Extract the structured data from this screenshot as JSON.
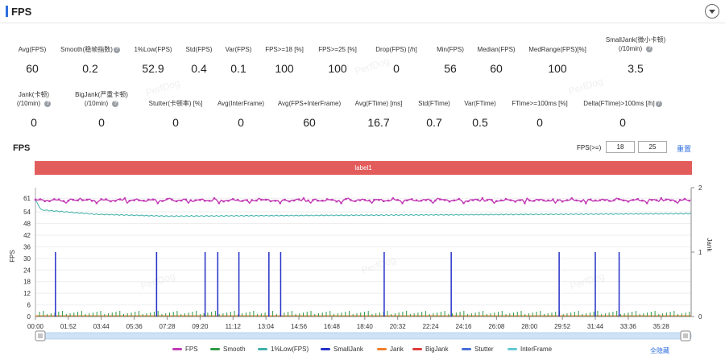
{
  "header": {
    "title": "FPS"
  },
  "metrics_row1": [
    {
      "label": "Avg(FPS)",
      "value": "60",
      "help": false
    },
    {
      "label": "Smooth(稳帧指数)",
      "value": "0.2",
      "help": true
    },
    {
      "label": "1%Low(FPS)",
      "value": "52.9",
      "help": false
    },
    {
      "label": "Std(FPS)",
      "value": "0.4",
      "help": false
    },
    {
      "label": "Var(FPS)",
      "value": "0.1",
      "help": false
    },
    {
      "label": "FPS>=18 [%]",
      "value": "100",
      "help": false
    },
    {
      "label": "FPS>=25 [%]",
      "value": "100",
      "help": false
    },
    {
      "label": "Drop(FPS) [/h]",
      "value": "0",
      "help": false
    },
    {
      "label": "Min(FPS)",
      "value": "56",
      "help": false
    },
    {
      "label": "Median(FPS)",
      "value": "60",
      "help": false
    },
    {
      "label": "MedRange(FPS)[%]",
      "value": "100",
      "help": false
    },
    {
      "label": "SmallJank(微小卡顿)",
      "label2": "(/10min)",
      "value": "3.5",
      "help": true
    }
  ],
  "metrics_row2": [
    {
      "label": "Jank(卡顿)",
      "label2": "(/10min)",
      "value": "0",
      "help": true
    },
    {
      "label": "BigJank(严重卡顿)",
      "label2": "(/10min)",
      "value": "0",
      "help": true
    },
    {
      "label": "Stutter(卡顿率) [%]",
      "value": "0",
      "help": false
    },
    {
      "label": "Avg(InterFrame)",
      "value": "0",
      "help": false
    },
    {
      "label": "Avg(FPS+InterFrame)",
      "value": "60",
      "help": false
    },
    {
      "label": "Avg(FTime) [ms]",
      "value": "16.7",
      "help": false
    },
    {
      "label": "Std(FTime)",
      "value": "0.7",
      "help": false
    },
    {
      "label": "Var(FTime)",
      "value": "0.5",
      "help": false
    },
    {
      "label": "FTime>=100ms [%]",
      "value": "0",
      "help": false
    },
    {
      "label": "Delta(FTime)>100ms [/h]",
      "value": "0",
      "help": true
    }
  ],
  "watermark": "PerfDog",
  "chart_section": {
    "title": "FPS",
    "fps_threshold_label": "FPS(>=)",
    "threshold1": "18",
    "threshold2": "25",
    "reset_label": "重置",
    "band_label": "label1"
  },
  "chart_data": {
    "type": "line",
    "ylabel": "FPS",
    "y2label": "Jank",
    "yticks": [
      0,
      6,
      12,
      18,
      24,
      30,
      36,
      42,
      48,
      54,
      61
    ],
    "y2ticks": [
      0,
      1,
      2
    ],
    "ylim": [
      0,
      64
    ],
    "xticks": [
      "00:00",
      "01:52",
      "03:44",
      "05:36",
      "07:28",
      "09:20",
      "11:12",
      "13:04",
      "14:56",
      "16:48",
      "18:40",
      "20:32",
      "22:24",
      "24:16",
      "26:08",
      "28:00",
      "29:52",
      "31:44",
      "33:36",
      "35:28"
    ],
    "xlim_seconds": [
      0,
      2230
    ],
    "series": [
      {
        "name": "FPS",
        "color": "#c23bb5",
        "kind": "fps",
        "approx_value": 60
      },
      {
        "name": "Smooth",
        "color": "#2f9b45",
        "kind": "ticks"
      },
      {
        "name": "1%Low(FPS)",
        "color": "#3fb0a8",
        "kind": "low",
        "start": 60,
        "settle": 52.9
      },
      {
        "name": "SmallJank",
        "color": "#2430c8",
        "kind": "spikes",
        "times_sec": [
          68,
          412,
          577,
          620,
          692,
          794,
          834,
          1186,
          1414,
          1781,
          1904,
          1985
        ]
      },
      {
        "name": "Jank",
        "color": "#f07f2a",
        "kind": "zero"
      },
      {
        "name": "BigJank",
        "color": "#e03b3b",
        "kind": "zero"
      },
      {
        "name": "Stutter",
        "color": "#4a6fd8",
        "kind": "zero"
      },
      {
        "name": "InterFrame",
        "color": "#63c9d2",
        "kind": "zero"
      }
    ]
  },
  "legend_hide_all": "全隐藏"
}
